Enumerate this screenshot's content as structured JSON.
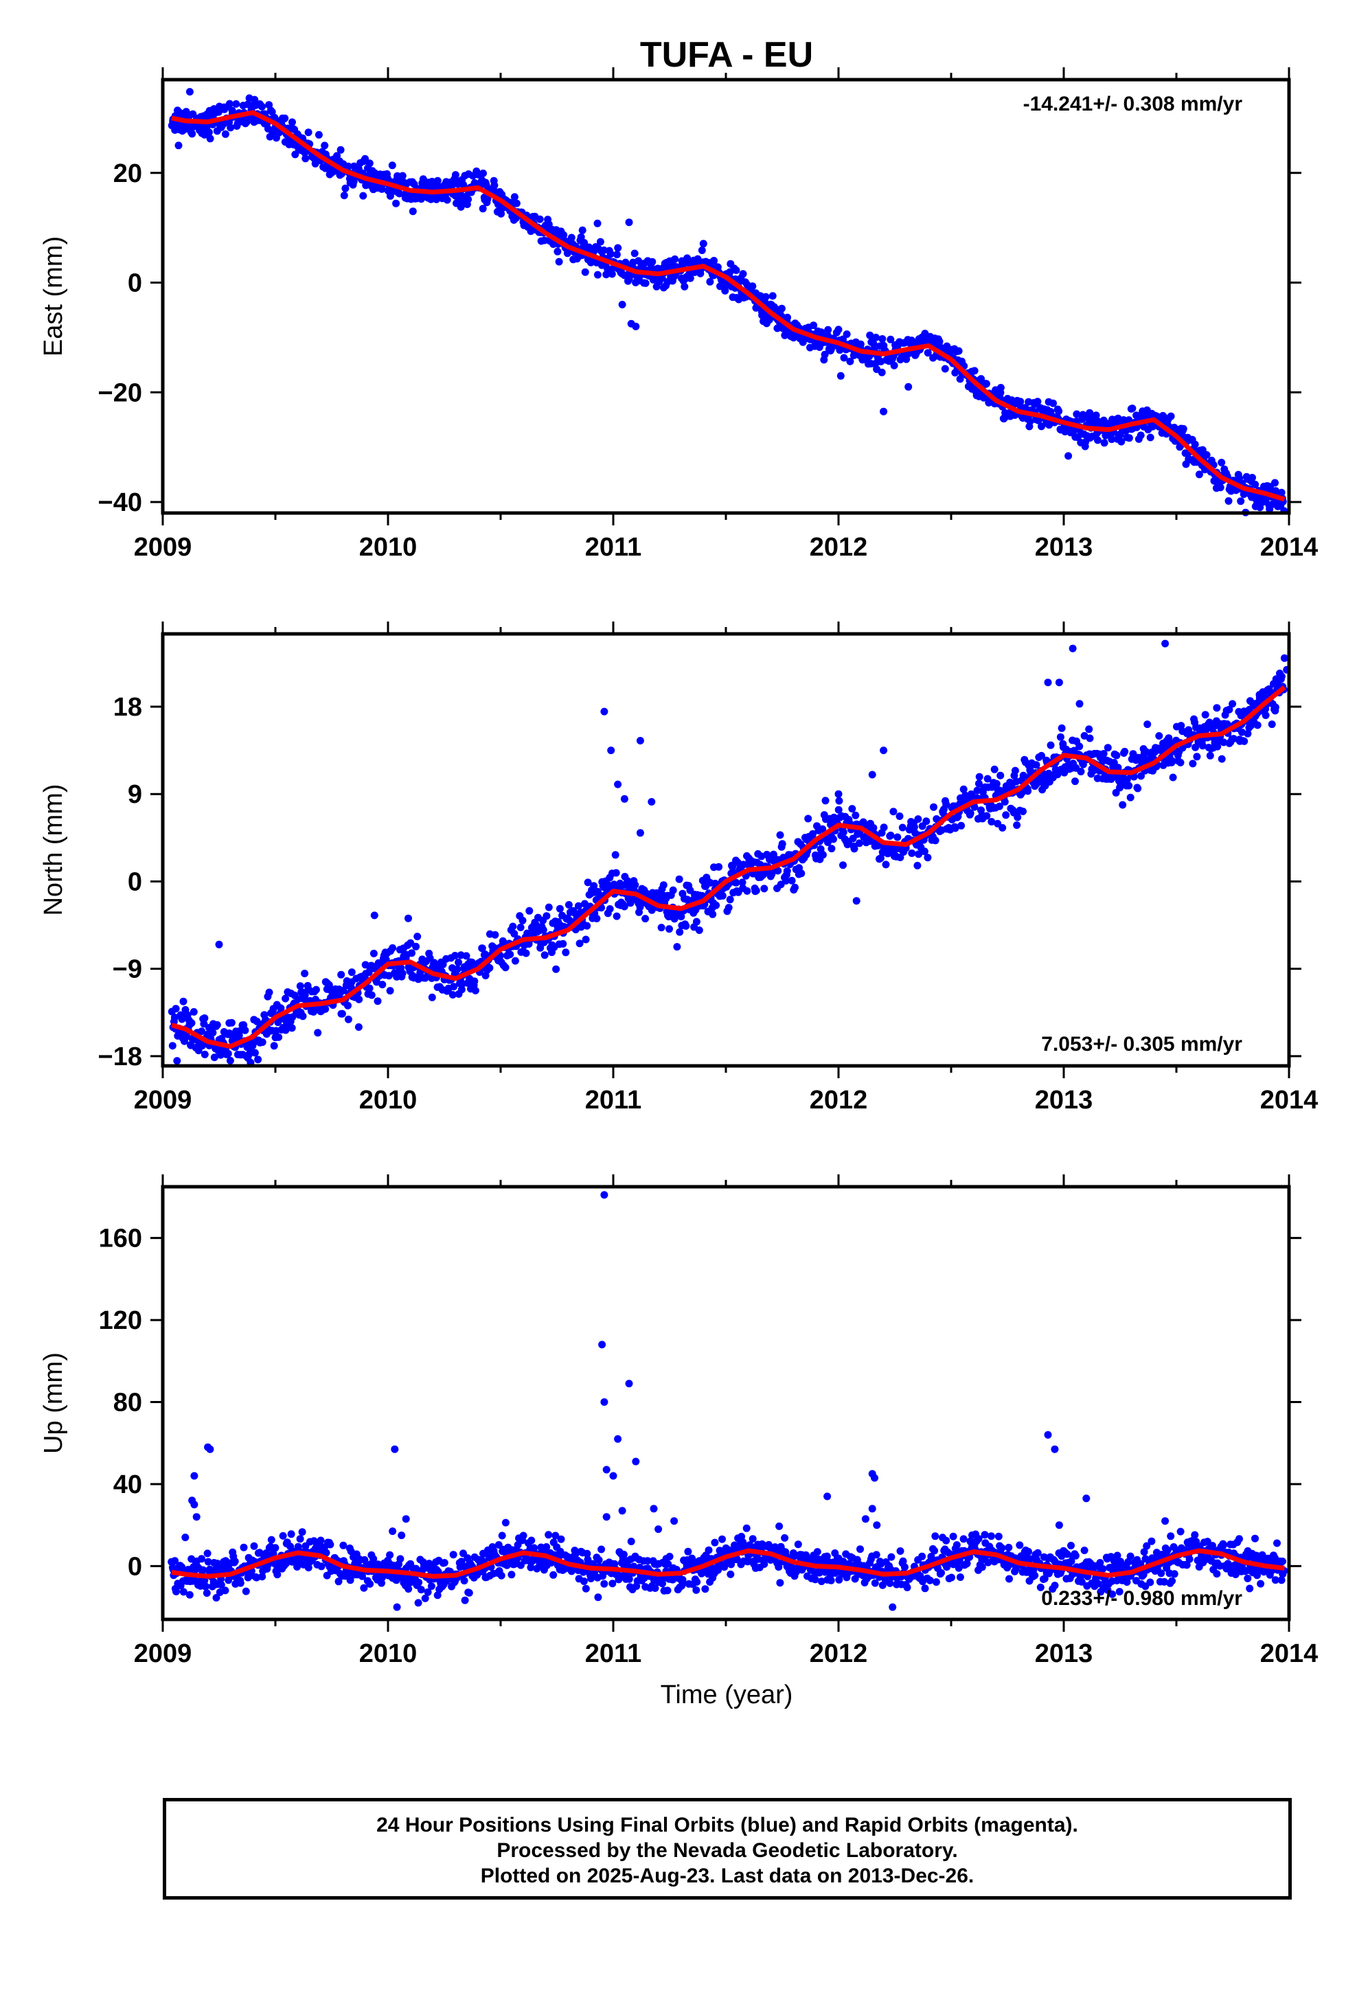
{
  "title": "TUFA - EU",
  "x_axis_label": "Time (year)",
  "footer": {
    "line1": "24 Hour Positions Using Final Orbits (blue) and Rapid Orbits (magenta).",
    "line2": "Processed by the Nevada Geodetic Laboratory.",
    "line3": "Plotted on 2025-Aug-23. Last data on 2013-Dec-26."
  },
  "colors": {
    "points": "#0000ff",
    "fit": "#ff0000",
    "axes": "#000000"
  },
  "chart_data": [
    {
      "type": "scatter",
      "ylabel": "East (mm)",
      "rate_label": "-14.241+/- 0.308 mm/yr",
      "rate_position": "top-right",
      "xlim": [
        2009,
        2014
      ],
      "ylim": [
        -42,
        37
      ],
      "xticks": [
        2009,
        2010,
        2011,
        2012,
        2013,
        2014
      ],
      "yticks": [
        -40,
        -20,
        0,
        20
      ],
      "yticklabels": [
        "−40",
        "−20",
        "0",
        "20"
      ],
      "rate_mm_per_yr": -14.241,
      "series": [
        {
          "values": [
            [
              2009.04,
              30
            ],
            [
              2009.1,
              29.5
            ],
            [
              2009.2,
              29.3
            ],
            [
              2009.3,
              30.2
            ],
            [
              2009.4,
              31
            ],
            [
              2009.5,
              29
            ],
            [
              2009.6,
              26
            ],
            [
              2009.7,
              23
            ],
            [
              2009.8,
              20.5
            ],
            [
              2009.9,
              19
            ],
            [
              2010.0,
              18
            ],
            [
              2010.1,
              16.8
            ],
            [
              2010.2,
              16.5
            ],
            [
              2010.3,
              16.8
            ],
            [
              2010.4,
              17.3
            ],
            [
              2010.5,
              15
            ],
            [
              2010.6,
              12
            ],
            [
              2010.7,
              9
            ],
            [
              2010.8,
              6.5
            ],
            [
              2010.9,
              5
            ],
            [
              2011.0,
              3.5
            ],
            [
              2011.1,
              2
            ],
            [
              2011.2,
              1.6
            ],
            [
              2011.3,
              2.3
            ],
            [
              2011.4,
              3
            ],
            [
              2011.5,
              1
            ],
            [
              2011.6,
              -2
            ],
            [
              2011.7,
              -5.5
            ],
            [
              2011.8,
              -8.5
            ],
            [
              2011.9,
              -10
            ],
            [
              2012.0,
              -11
            ],
            [
              2012.1,
              -12.5
            ],
            [
              2012.2,
              -13
            ],
            [
              2012.3,
              -12.2
            ],
            [
              2012.4,
              -11.5
            ],
            [
              2012.5,
              -14
            ],
            [
              2012.6,
              -18
            ],
            [
              2012.7,
              -21.5
            ],
            [
              2012.8,
              -23.5
            ],
            [
              2012.9,
              -24.3
            ],
            [
              2013.0,
              -25.5
            ],
            [
              2013.1,
              -26.5
            ],
            [
              2013.2,
              -26.8
            ],
            [
              2013.3,
              -25.8
            ],
            [
              2013.4,
              -25
            ],
            [
              2013.5,
              -28
            ],
            [
              2013.6,
              -32
            ],
            [
              2013.7,
              -35.5
            ],
            [
              2013.8,
              -37.5
            ],
            [
              2013.9,
              -38.5
            ],
            [
              2013.98,
              -39.5
            ]
          ]
        }
      ],
      "scatter_spread_mm": 1.3,
      "outliers": [
        [
          2009.12,
          34.8
        ],
        [
          2009.07,
          25
        ],
        [
          2010.93,
          10.8
        ],
        [
          2011.07,
          11
        ],
        [
          2011.1,
          -8
        ],
        [
          2011.08,
          -7.5
        ],
        [
          2011.04,
          -4
        ],
        [
          2012.01,
          -17
        ],
        [
          2012.2,
          -23.5
        ],
        [
          2012.31,
          -19
        ],
        [
          2013.02,
          -31.6
        ],
        [
          2013.95,
          -40.8
        ]
      ]
    },
    {
      "type": "scatter",
      "ylabel": "North (mm)",
      "rate_label": "7.053+/- 0.305 mm/yr",
      "rate_position": "bottom-right",
      "xlim": [
        2009,
        2014
      ],
      "ylim": [
        -19,
        25.5
      ],
      "xticks": [
        2009,
        2010,
        2011,
        2012,
        2013,
        2014
      ],
      "yticks": [
        -18,
        -9,
        0,
        9,
        18
      ],
      "yticklabels": [
        "−18",
        "−9",
        "0",
        "9",
        "18"
      ],
      "rate_mm_per_yr": 7.053,
      "series": [
        {
          "values": [
            [
              2009.04,
              -14.8
            ],
            [
              2009.1,
              -15.2
            ],
            [
              2009.2,
              -16.5
            ],
            [
              2009.3,
              -17
            ],
            [
              2009.4,
              -16
            ],
            [
              2009.5,
              -14
            ],
            [
              2009.6,
              -12.8
            ],
            [
              2009.7,
              -12.6
            ],
            [
              2009.8,
              -12.2
            ],
            [
              2009.9,
              -10.5
            ],
            [
              2010.0,
              -8.5
            ],
            [
              2010.1,
              -8.3
            ],
            [
              2010.2,
              -9.5
            ],
            [
              2010.3,
              -10
            ],
            [
              2010.4,
              -9
            ],
            [
              2010.5,
              -7
            ],
            [
              2010.6,
              -6
            ],
            [
              2010.7,
              -5.8
            ],
            [
              2010.8,
              -5
            ],
            [
              2010.9,
              -3
            ],
            [
              2011.0,
              -1
            ],
            [
              2011.1,
              -1.3
            ],
            [
              2011.2,
              -2.5
            ],
            [
              2011.3,
              -2.8
            ],
            [
              2011.4,
              -2
            ],
            [
              2011.5,
              0
            ],
            [
              2011.6,
              1.2
            ],
            [
              2011.7,
              1.4
            ],
            [
              2011.8,
              2.3
            ],
            [
              2011.9,
              4.3
            ],
            [
              2012.0,
              5.8
            ],
            [
              2012.1,
              5.5
            ],
            [
              2012.2,
              4
            ],
            [
              2012.3,
              3.8
            ],
            [
              2012.4,
              5
            ],
            [
              2012.5,
              7
            ],
            [
              2012.6,
              8.2
            ],
            [
              2012.7,
              8.4
            ],
            [
              2012.8,
              9.5
            ],
            [
              2012.9,
              11.5
            ],
            [
              2013.0,
              13
            ],
            [
              2013.1,
              12.7
            ],
            [
              2013.2,
              11.3
            ],
            [
              2013.3,
              11.2
            ],
            [
              2013.4,
              12.2
            ],
            [
              2013.5,
              14
            ],
            [
              2013.6,
              15
            ],
            [
              2013.7,
              15.2
            ],
            [
              2013.8,
              16.5
            ],
            [
              2013.9,
              18.5
            ],
            [
              2013.98,
              20
            ]
          ]
        }
      ],
      "scatter_spread_mm": 1.2,
      "outliers": [
        [
          2009.25,
          -6.5
        ],
        [
          2009.94,
          -3.5
        ],
        [
          2009.87,
          -15
        ],
        [
          2010.09,
          -3.8
        ],
        [
          2010.96,
          17.5
        ],
        [
          2010.99,
          13.5
        ],
        [
          2011.02,
          10
        ],
        [
          2011.12,
          14.5
        ],
        [
          2011.17,
          8.2
        ],
        [
          2011.05,
          8.5
        ],
        [
          2011.12,
          5
        ],
        [
          2012.0,
          9
        ],
        [
          2012.15,
          11
        ],
        [
          2012.2,
          13.5
        ],
        [
          2012.08,
          -2
        ],
        [
          2012.93,
          20.5
        ],
        [
          2012.98,
          20.5
        ],
        [
          2013.04,
          24
        ],
        [
          2013.07,
          18.3
        ],
        [
          2013.45,
          24.5
        ],
        [
          2013.98,
          23
        ],
        [
          2013.99,
          21.8
        ]
      ]
    },
    {
      "type": "scatter",
      "ylabel": "Up (mm)",
      "rate_label": "0.233+/- 0.980 mm/yr",
      "rate_position": "bottom-right",
      "xlim": [
        2009,
        2014
      ],
      "ylim": [
        -26,
        185
      ],
      "xticks": [
        2009,
        2010,
        2011,
        2012,
        2013,
        2014
      ],
      "yticks": [
        0,
        40,
        80,
        120,
        160
      ],
      "yticklabels": [
        "0",
        "40",
        "80",
        "120",
        "160"
      ],
      "rate_mm_per_yr": 0.233,
      "series": [
        {
          "values": [
            [
              2009.04,
              -3
            ],
            [
              2009.1,
              -4
            ],
            [
              2009.2,
              -5
            ],
            [
              2009.3,
              -4
            ],
            [
              2009.4,
              0
            ],
            [
              2009.5,
              4
            ],
            [
              2009.6,
              6.5
            ],
            [
              2009.7,
              5
            ],
            [
              2009.8,
              0
            ],
            [
              2009.9,
              -2
            ],
            [
              2010.0,
              -2.5
            ],
            [
              2010.1,
              -3.5
            ],
            [
              2010.2,
              -5
            ],
            [
              2010.3,
              -4.5
            ],
            [
              2010.4,
              -1
            ],
            [
              2010.5,
              3.5
            ],
            [
              2010.6,
              6.5
            ],
            [
              2010.7,
              5
            ],
            [
              2010.8,
              1
            ],
            [
              2010.9,
              -1
            ],
            [
              2011.0,
              -1.5
            ],
            [
              2011.1,
              -2.5
            ],
            [
              2011.2,
              -4
            ],
            [
              2011.3,
              -3.5
            ],
            [
              2011.4,
              0
            ],
            [
              2011.5,
              4.5
            ],
            [
              2011.6,
              7.5
            ],
            [
              2011.7,
              6
            ],
            [
              2011.8,
              2
            ],
            [
              2011.9,
              0
            ],
            [
              2012.0,
              -0.5
            ],
            [
              2012.1,
              -2
            ],
            [
              2012.2,
              -4
            ],
            [
              2012.3,
              -3.5
            ],
            [
              2012.4,
              0
            ],
            [
              2012.5,
              4
            ],
            [
              2012.6,
              7
            ],
            [
              2012.7,
              5.5
            ],
            [
              2012.8,
              1.5
            ],
            [
              2012.9,
              0
            ],
            [
              2013.0,
              -1
            ],
            [
              2013.1,
              -3
            ],
            [
              2013.2,
              -4.5
            ],
            [
              2013.3,
              -3
            ],
            [
              2013.4,
              1
            ],
            [
              2013.5,
              5
            ],
            [
              2013.6,
              7.5
            ],
            [
              2013.7,
              6
            ],
            [
              2013.8,
              2
            ],
            [
              2013.9,
              0
            ],
            [
              2013.98,
              -1
            ]
          ]
        }
      ],
      "scatter_spread_mm": 4.5,
      "outliers": [
        [
          2009.2,
          58
        ],
        [
          2009.21,
          57
        ],
        [
          2009.14,
          44
        ],
        [
          2009.13,
          32
        ],
        [
          2009.14,
          30
        ],
        [
          2009.15,
          24
        ],
        [
          2009.1,
          14
        ],
        [
          2010.03,
          57
        ],
        [
          2010.08,
          23
        ],
        [
          2010.02,
          17
        ],
        [
          2010.06,
          15
        ],
        [
          2010.04,
          -20
        ],
        [
          2010.96,
          181
        ],
        [
          2010.95,
          108
        ],
        [
          2010.96,
          80
        ],
        [
          2011.07,
          89
        ],
        [
          2011.02,
          62
        ],
        [
          2011.1,
          51
        ],
        [
          2010.97,
          47
        ],
        [
          2011.0,
          44
        ],
        [
          2011.04,
          27
        ],
        [
          2011.18,
          28
        ],
        [
          2010.97,
          24
        ],
        [
          2011.2,
          18
        ],
        [
          2011.27,
          22
        ],
        [
          2011.95,
          34
        ],
        [
          2012.15,
          45
        ],
        [
          2012.16,
          43
        ],
        [
          2012.15,
          28
        ],
        [
          2012.17,
          20
        ],
        [
          2012.12,
          23
        ],
        [
          2012.24,
          -20
        ],
        [
          2012.93,
          64
        ],
        [
          2012.96,
          57
        ],
        [
          2013.1,
          33
        ],
        [
          2012.98,
          20
        ],
        [
          2013.45,
          22
        ],
        [
          2011.08,
          12
        ]
      ]
    }
  ]
}
